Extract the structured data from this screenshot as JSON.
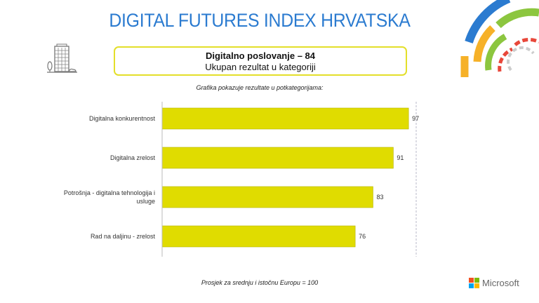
{
  "header": {
    "title": "DIGITAL FUTURES INDEX HRVATSKA",
    "category_title": "Digitalno poslovanje – 84",
    "category_subtitle": "Ukupan rezultat u kategoriji",
    "caption": "Grafika pokazuje rezultate u potkategorijama:"
  },
  "footer": {
    "note": "Prosjek za srednju i istočnu Europu = 100",
    "logo_text": "Microsoft"
  },
  "colors": {
    "title": "#2b7bd0",
    "bar": "#e0dc00",
    "box_border": "#e3df2a"
  },
  "icons": [
    "office-building-icon",
    "decorative-arcs-icon",
    "microsoft-logo-icon"
  ],
  "chart_data": {
    "type": "bar",
    "orientation": "horizontal",
    "categories": [
      "Digitalna konkurentnost",
      "Digitalna zrelost",
      "Potrošnja - digitalna tehnologija i usluge",
      "Rad na daljinu - zrelost"
    ],
    "category_lines": [
      [
        "Digitalna konkurentnost"
      ],
      [
        "Digitalna zrelost"
      ],
      [
        "Potrošnja - digitalna tehnologija i",
        "usluge"
      ],
      [
        "Rad na daljinu - zrelost"
      ]
    ],
    "values": [
      97,
      91,
      83,
      76
    ],
    "labels": [
      "97",
      "91",
      "83",
      "76"
    ],
    "reference_line": 100,
    "xlim": [
      0,
      100
    ],
    "grid": false,
    "legend": "none"
  }
}
